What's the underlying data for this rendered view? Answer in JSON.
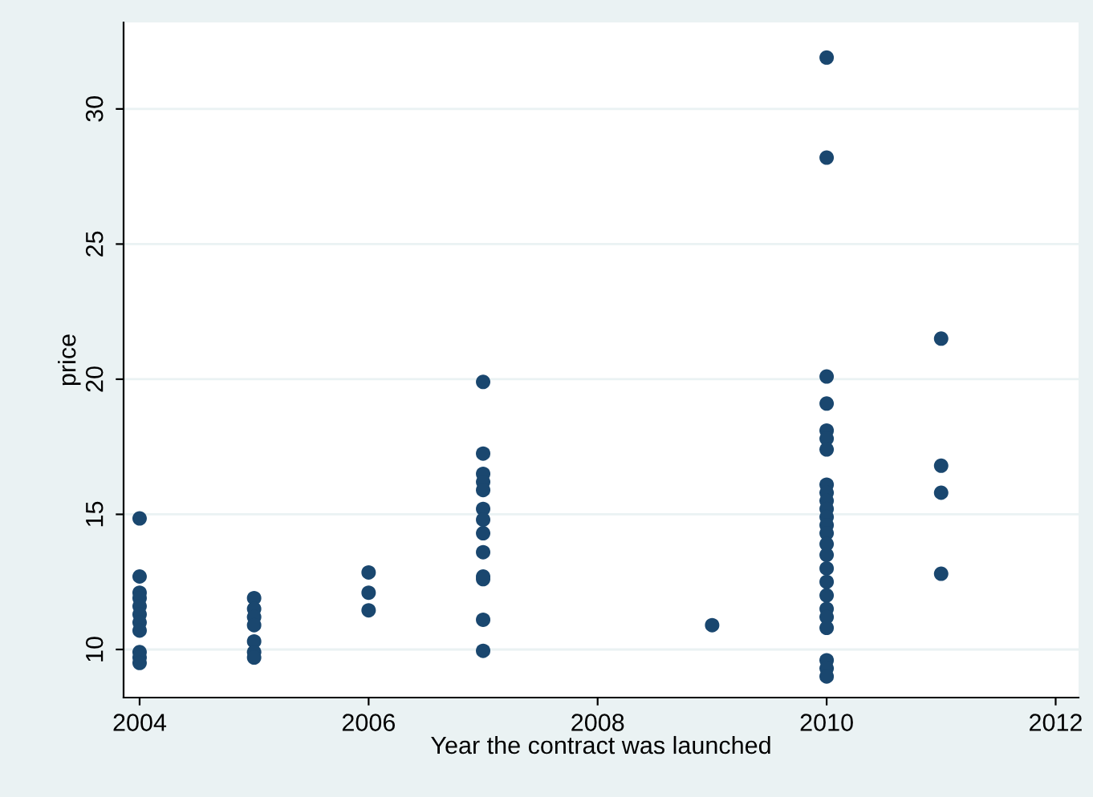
{
  "chart_data": {
    "type": "scatter",
    "xlabel": "Year the contract was launched",
    "ylabel": "price",
    "xlim": [
      2003.86,
      2012.2
    ],
    "ylim": [
      8.22,
      33.2
    ],
    "xticks": [
      2004,
      2006,
      2008,
      2010,
      2012
    ],
    "yticks": [
      10,
      15,
      20,
      25,
      30
    ],
    "grid": "y",
    "marker": "circle",
    "series": [
      {
        "color": "#1a476f",
        "x": [
          2004,
          2004,
          2004,
          2004,
          2004,
          2004,
          2004,
          2004,
          2004,
          2004,
          2004,
          2005,
          2005,
          2005,
          2005,
          2005,
          2005,
          2005,
          2006,
          2006,
          2006,
          2007,
          2007,
          2007,
          2007,
          2007,
          2007,
          2007,
          2007,
          2007,
          2007,
          2007,
          2007,
          2007,
          2009,
          2010,
          2010,
          2010,
          2010,
          2010,
          2010,
          2010,
          2010,
          2010,
          2010,
          2010,
          2010,
          2010,
          2010,
          2010,
          2010,
          2010,
          2010,
          2010,
          2010,
          2010,
          2010,
          2010,
          2010,
          2010,
          2011,
          2011,
          2011,
          2011
        ],
        "values": [
          14.85,
          12.7,
          12.1,
          11.9,
          11.6,
          11.3,
          11.0,
          10.7,
          9.9,
          9.7,
          9.5,
          11.9,
          11.5,
          11.2,
          10.9,
          10.3,
          9.9,
          9.7,
          12.85,
          12.1,
          11.45,
          19.9,
          17.25,
          16.5,
          16.2,
          15.9,
          15.2,
          14.8,
          14.3,
          13.6,
          12.7,
          12.6,
          11.1,
          9.95,
          10.9,
          31.9,
          28.2,
          20.1,
          19.1,
          18.1,
          17.8,
          17.4,
          16.1,
          15.8,
          15.5,
          15.2,
          14.9,
          14.6,
          14.3,
          13.9,
          13.5,
          13.0,
          12.5,
          12.0,
          11.5,
          11.2,
          10.8,
          9.6,
          9.3,
          9.0,
          21.5,
          16.8,
          15.8,
          12.8
        ]
      }
    ]
  }
}
